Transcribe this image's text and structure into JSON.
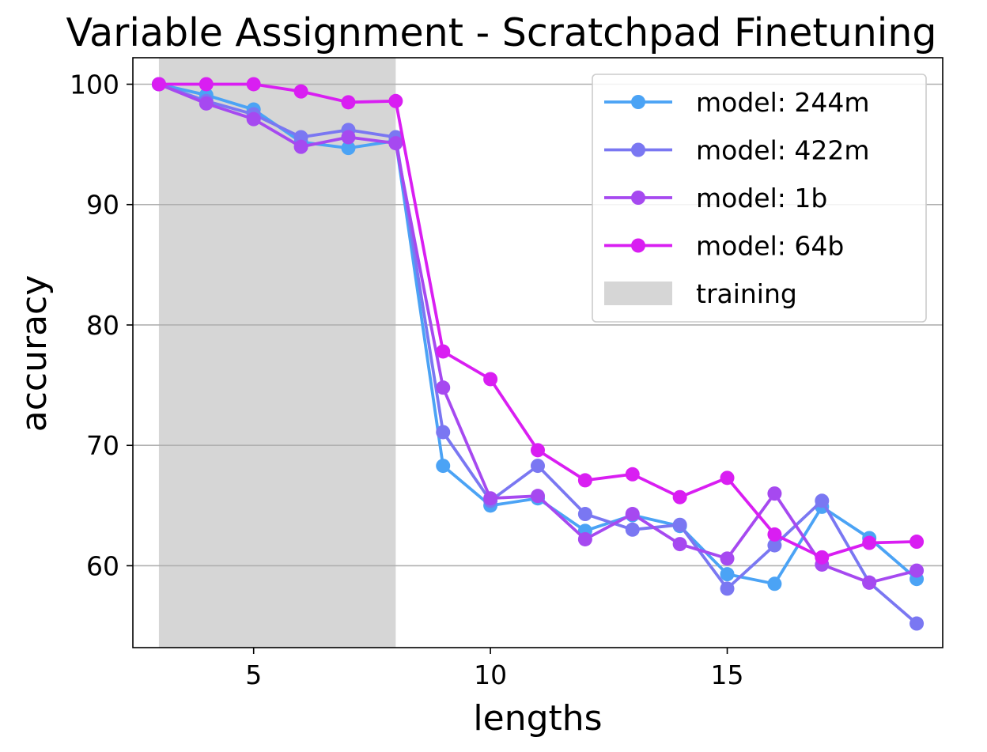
{
  "chart_data": {
    "type": "line",
    "title": "Variable Assignment - Scratchpad Finetuning",
    "xlabel": "lengths",
    "ylabel": "accuracy",
    "xlim": [
      2.45,
      19.55
    ],
    "ylim": [
      53.2,
      102.2
    ],
    "xticks": [
      5,
      10,
      15
    ],
    "yticks": [
      60,
      70,
      80,
      90,
      100
    ],
    "grid": "horizontal",
    "legend_position": "top-right",
    "shaded_region": {
      "label": "training",
      "x0": 3,
      "x1": 8,
      "color": "#d6d6d6"
    },
    "series": [
      {
        "name": "model: 244m",
        "color": "#4ba3f5",
        "x": [
          3,
          4,
          5,
          6,
          7,
          8,
          9,
          10,
          11,
          12,
          13,
          14,
          15,
          16,
          17,
          18,
          19
        ],
        "y": [
          100,
          99.1,
          97.9,
          95.2,
          94.7,
          95.3,
          68.3,
          65.0,
          65.6,
          62.9,
          64.2,
          63.3,
          59.3,
          58.5,
          64.9,
          62.3,
          58.9
        ]
      },
      {
        "name": "model: 422m",
        "color": "#7a77f2",
        "x": [
          3,
          4,
          5,
          6,
          7,
          8,
          9,
          10,
          11,
          12,
          13,
          14,
          15,
          16,
          17,
          18,
          19
        ],
        "y": [
          100,
          98.6,
          97.5,
          95.6,
          96.2,
          95.6,
          71.1,
          65.4,
          68.3,
          64.3,
          63.0,
          63.4,
          58.1,
          61.7,
          65.4,
          58.6,
          55.2
        ]
      },
      {
        "name": "model: 1b",
        "color": "#a649f0",
        "x": [
          3,
          4,
          5,
          6,
          7,
          8,
          9,
          10,
          11,
          12,
          13,
          14,
          15,
          16,
          17,
          18,
          19
        ],
        "y": [
          100,
          98.4,
          97.1,
          94.8,
          95.6,
          95.1,
          74.8,
          65.6,
          65.8,
          62.2,
          64.3,
          61.8,
          60.6,
          66.0,
          60.1,
          58.6,
          59.6
        ]
      },
      {
        "name": "model: 64b",
        "color": "#d91ef2",
        "x": [
          3,
          4,
          5,
          6,
          7,
          8,
          9,
          10,
          11,
          12,
          13,
          14,
          15,
          16,
          17,
          18,
          19
        ],
        "y": [
          100,
          100,
          100,
          99.4,
          98.5,
          98.6,
          77.8,
          75.5,
          69.6,
          67.1,
          67.6,
          65.7,
          67.3,
          62.6,
          60.7,
          61.9,
          62.0
        ]
      }
    ]
  }
}
